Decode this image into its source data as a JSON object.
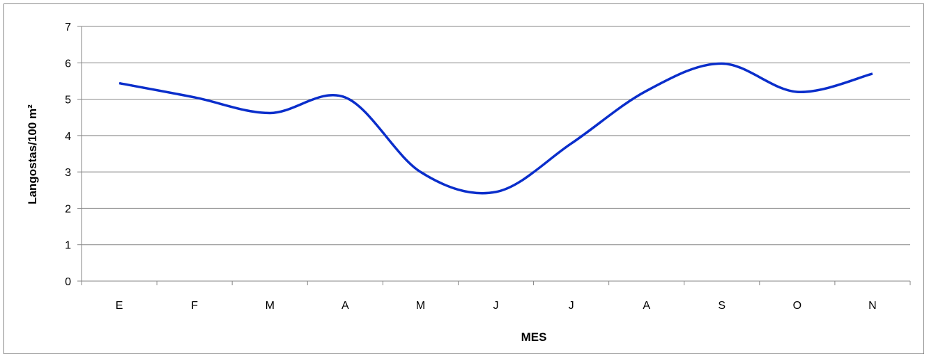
{
  "chart_data": {
    "type": "line",
    "title": "",
    "xlabel": "MES",
    "ylabel": "Langostas/100 m²",
    "categories": [
      "E",
      "F",
      "M",
      "A",
      "M",
      "J",
      "J",
      "A",
      "S",
      "O",
      "N"
    ],
    "series": [
      {
        "values": [
          5.44,
          5.05,
          4.62,
          5.05,
          3.0,
          2.45,
          3.78,
          5.23,
          5.98,
          5.2,
          5.7
        ]
      }
    ],
    "ylim": [
      0,
      7
    ],
    "yticks": [
      0,
      1,
      2,
      3,
      4,
      5,
      6,
      7
    ],
    "grid": true,
    "legend": "none",
    "smooth": true,
    "colors": {
      "line": "#0a2ecb",
      "grid": "#868686",
      "axis": "#868686"
    }
  }
}
